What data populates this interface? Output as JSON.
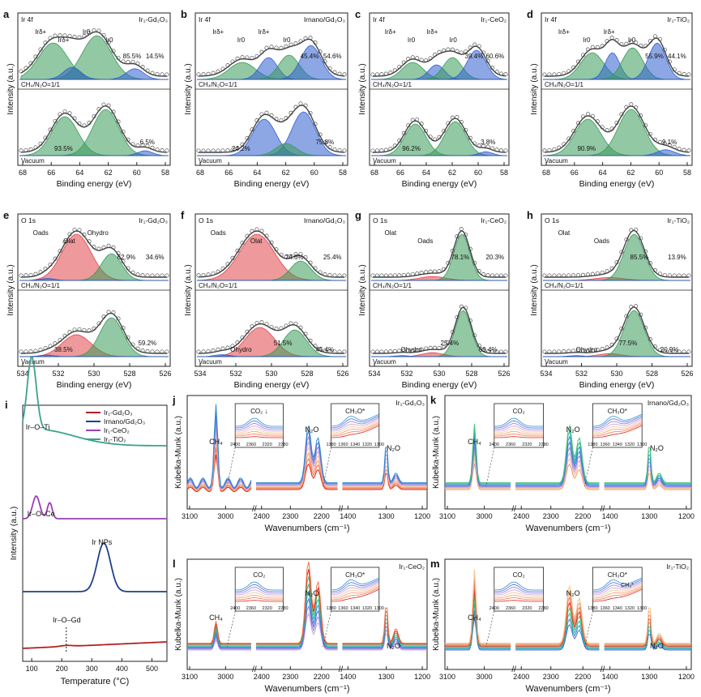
{
  "chart_data": [
    {
      "letter": "a",
      "type": "line",
      "core": "Ir 4f",
      "sample": "Ir₁-Gd₂O₃",
      "xlabel": "Binding energy (eV)",
      "ylabel": "Intensity (a.u.)",
      "xticks": [
        "68",
        "66",
        "64",
        "62",
        "60",
        "58"
      ],
      "top": {
        "condition": "CH₄/N₂O=1/1",
        "labels": [
          "Irδ+",
          "Irδ+",
          "Ir0",
          "Ir0",
          "85.5%",
          "14.5%"
        ]
      },
      "bottom": {
        "condition": "Vacuum",
        "labels": [
          "93.5%",
          "6.5%"
        ]
      }
    },
    {
      "letter": "b",
      "type": "line",
      "core": "Ir 4f",
      "sample": "Irnano/Gd₂O₃",
      "xlabel": "Binding energy (eV)",
      "ylabel": "Intensity (a.u.)",
      "xticks": [
        "68",
        "66",
        "64",
        "62",
        "60",
        "58"
      ],
      "top": {
        "condition": "CH₄/N₂O=1/1",
        "labels": [
          "Irδ+",
          "Ir0",
          "Irδ+",
          "Ir0",
          "45.4%",
          "54.6%"
        ]
      },
      "bottom": {
        "condition": "Vacuum",
        "labels": [
          "24.2%",
          "75.8%"
        ]
      }
    },
    {
      "letter": "c",
      "type": "line",
      "core": "Ir 4f",
      "sample": "Ir₁-CeO₂",
      "xlabel": "Binding energy (eV)",
      "ylabel": "Intensity (a.u.)",
      "xticks": [
        "68",
        "66",
        "64",
        "62",
        "60",
        "58"
      ],
      "top": {
        "condition": "CH₄/N₂O=1/1",
        "labels": [
          "Irδ+",
          "Ir0",
          "Irδ+",
          "Ir0",
          "39.4%",
          "60.6%"
        ]
      },
      "bottom": {
        "condition": "Vacuum",
        "labels": [
          "96.2%",
          "3.8%"
        ]
      }
    },
    {
      "letter": "d",
      "type": "line",
      "core": "Ir 4f",
      "sample": "Ir₁-TiO₂",
      "xlabel": "Binding energy (eV)",
      "ylabel": "Intensity (a.u.)",
      "xticks": [
        "68",
        "66",
        "64",
        "62",
        "60",
        "58"
      ],
      "top": {
        "condition": "CH₄/N₂O=1/1",
        "labels": [
          "Irδ+",
          "Ir0",
          "Irδ+",
          "Ir0",
          "55.9%",
          "44.1%"
        ]
      },
      "bottom": {
        "condition": "Vacuum",
        "labels": [
          "90.9%",
          "9.1%"
        ]
      }
    },
    {
      "letter": "e",
      "type": "line",
      "core": "O 1s",
      "sample": "Ir₁-Gd₂O₃",
      "xlabel": "Binding energy (eV)",
      "ylabel": "Intensity (a.u.)",
      "xticks": [
        "534",
        "532",
        "530",
        "528",
        "526"
      ],
      "top": {
        "condition": "CH₄/N₂O=1/1",
        "labels": [
          "Oads",
          "Olat",
          "Ohydro",
          "62.9%",
          "34.6%"
        ]
      },
      "bottom": {
        "condition": "Vacuum",
        "labels": [
          "38.5%",
          "59.2%"
        ]
      }
    },
    {
      "letter": "f",
      "type": "line",
      "core": "O 1s",
      "sample": "Irnano/Gd₂O₃",
      "xlabel": "Binding energy (eV)",
      "ylabel": "Intensity (a.u.)",
      "xticks": [
        "534",
        "532",
        "530",
        "528",
        "526"
      ],
      "top": {
        "condition": "CH₄/N₂O=1/1",
        "labels": [
          "Oads",
          "Olat",
          "74.6%",
          "25.4%"
        ]
      },
      "bottom": {
        "condition": "Vacuum",
        "labels": [
          "Ohydro",
          "51.5%",
          "45.4%"
        ]
      }
    },
    {
      "letter": "g",
      "type": "line",
      "core": "O 1s",
      "sample": "Ir₁-CeO₂",
      "xlabel": "Binding energy (eV)",
      "ylabel": "Intensity (a.u.)",
      "xticks": [
        "534",
        "532",
        "530",
        "528",
        "526"
      ],
      "top": {
        "condition": "CH₄/N₂O=1/1",
        "labels": [
          "Olat",
          "Oads",
          "78.1%",
          "20.3%"
        ]
      },
      "bottom": {
        "condition": "Vacuum",
        "labels": [
          "Ohydro",
          "25.4%",
          "69.4%"
        ]
      }
    },
    {
      "letter": "h",
      "type": "line",
      "core": "O 1s",
      "sample": "Ir₁-TiO₂",
      "xlabel": "Binding energy (eV)",
      "ylabel": "Intensity (a.u.)",
      "xticks": [
        "534",
        "532",
        "530",
        "528",
        "526"
      ],
      "top": {
        "condition": "CH₄/N₂O=1/1",
        "labels": [
          "Olat",
          "Oads",
          "85.5%",
          "13.9%"
        ]
      },
      "bottom": {
        "condition": "Vacuum",
        "labels": [
          "Ohydro",
          "77.5%",
          "20.9%"
        ]
      }
    },
    {
      "letter": "i",
      "type": "line",
      "xlabel": "Temperature (°C)",
      "ylabel": "Intensity (a.u.)",
      "xticks": [
        "100",
        "200",
        "300",
        "400",
        "500"
      ],
      "legend": [
        {
          "name": "Ir₁-Gd₂O₃",
          "color": "#b22222"
        },
        {
          "name": "Irnano/Gd₂O₃",
          "color": "#1f3f8f"
        },
        {
          "name": "Ir₁-CeO₂",
          "color": "#9b3fb5"
        },
        {
          "name": "Ir₁-TiO₂",
          "color": "#3ba38c"
        }
      ],
      "annotations": [
        "Ir–O–Ti",
        "Ir–O–Ce",
        "Ir NPs",
        "Ir–O–Gd"
      ],
      "peaks": [
        {
          "series": "Ir₁-TiO₂",
          "x": 100
        },
        {
          "series": "Ir₁-CeO₂",
          "x": 115
        },
        {
          "series": "Ir₁-CeO₂",
          "x": 160
        },
        {
          "series": "Irnano/Gd₂O₃",
          "x": 340
        },
        {
          "series": "Ir₁-Gd₂O₃",
          "x": 215
        }
      ]
    },
    {
      "letter": "j",
      "type": "line",
      "sample": "Ir₁-Gd₂O₃",
      "xlabel": "Wavenumbers (cm⁻¹)",
      "ylabel": "Kubelka-Munk (a.u.)",
      "xticks": [
        "3100",
        "3000",
        "2400",
        "2300",
        "2200",
        "1400",
        "1300",
        "1200"
      ],
      "labels": [
        "CH₄",
        "N₂O",
        "N₂O",
        "CO₂ ↓",
        "CH₃O*"
      ],
      "insets": [
        {
          "ticks": [
            "2400",
            "2360",
            "2320",
            "2280"
          ]
        },
        {
          "ticks": [
            "1380",
            "1360",
            "1340",
            "1320",
            "1300"
          ]
        }
      ]
    },
    {
      "letter": "k",
      "type": "line",
      "sample": "Irnano/Gd₂O₃",
      "xlabel": "Wavenumbers (cm⁻¹)",
      "ylabel": "Kubelka-Munk (a.u.)",
      "xticks": [
        "3100",
        "3000",
        "2400",
        "2300",
        "2200",
        "1400",
        "1300",
        "1200"
      ],
      "labels": [
        "CH₄",
        "N₂O",
        "N₂O",
        "CO₂",
        "CH₃O*"
      ],
      "insets": [
        {
          "ticks": [
            "2400",
            "2360",
            "2320",
            "2280"
          ]
        },
        {
          "ticks": [
            "1380",
            "1360",
            "1340",
            "1320",
            "1300"
          ]
        }
      ]
    },
    {
      "letter": "l",
      "type": "line",
      "sample": "Ir₁-CeO₂",
      "xlabel": "Wavenumbers (cm⁻¹)",
      "ylabel": "Kubelka-Munk (a.u.)",
      "xticks": [
        "3100",
        "3000",
        "2400",
        "2300",
        "2200",
        "1400",
        "1300",
        "1200"
      ],
      "labels": [
        "CH₄",
        "N₂O",
        "N₂O",
        "CO₂",
        "CH₃O*"
      ],
      "insets": [
        {
          "ticks": [
            "2400",
            "2360",
            "2320",
            "2280"
          ]
        },
        {
          "ticks": [
            "1380",
            "1360",
            "1340",
            "1320",
            "1300"
          ]
        }
      ]
    },
    {
      "letter": "m",
      "type": "line",
      "sample": "Ir₁-TiO₂",
      "xlabel": "Wavenumbers (cm⁻¹)",
      "ylabel": "Kubelka-Munk (a.u.)",
      "xticks": [
        "3100",
        "3000",
        "2400",
        "2300",
        "2200",
        "1400",
        "1300",
        "1200"
      ],
      "labels": [
        "CH₄",
        "N₂O",
        "N₂O",
        "CO₂",
        "CH₃O*",
        "CH₃*"
      ],
      "insets": [
        {
          "ticks": [
            "2400",
            "2360",
            "2320",
            "2280"
          ]
        },
        {
          "ticks": [
            "1380",
            "1360",
            "1340",
            "1320",
            "1300"
          ]
        }
      ]
    }
  ]
}
